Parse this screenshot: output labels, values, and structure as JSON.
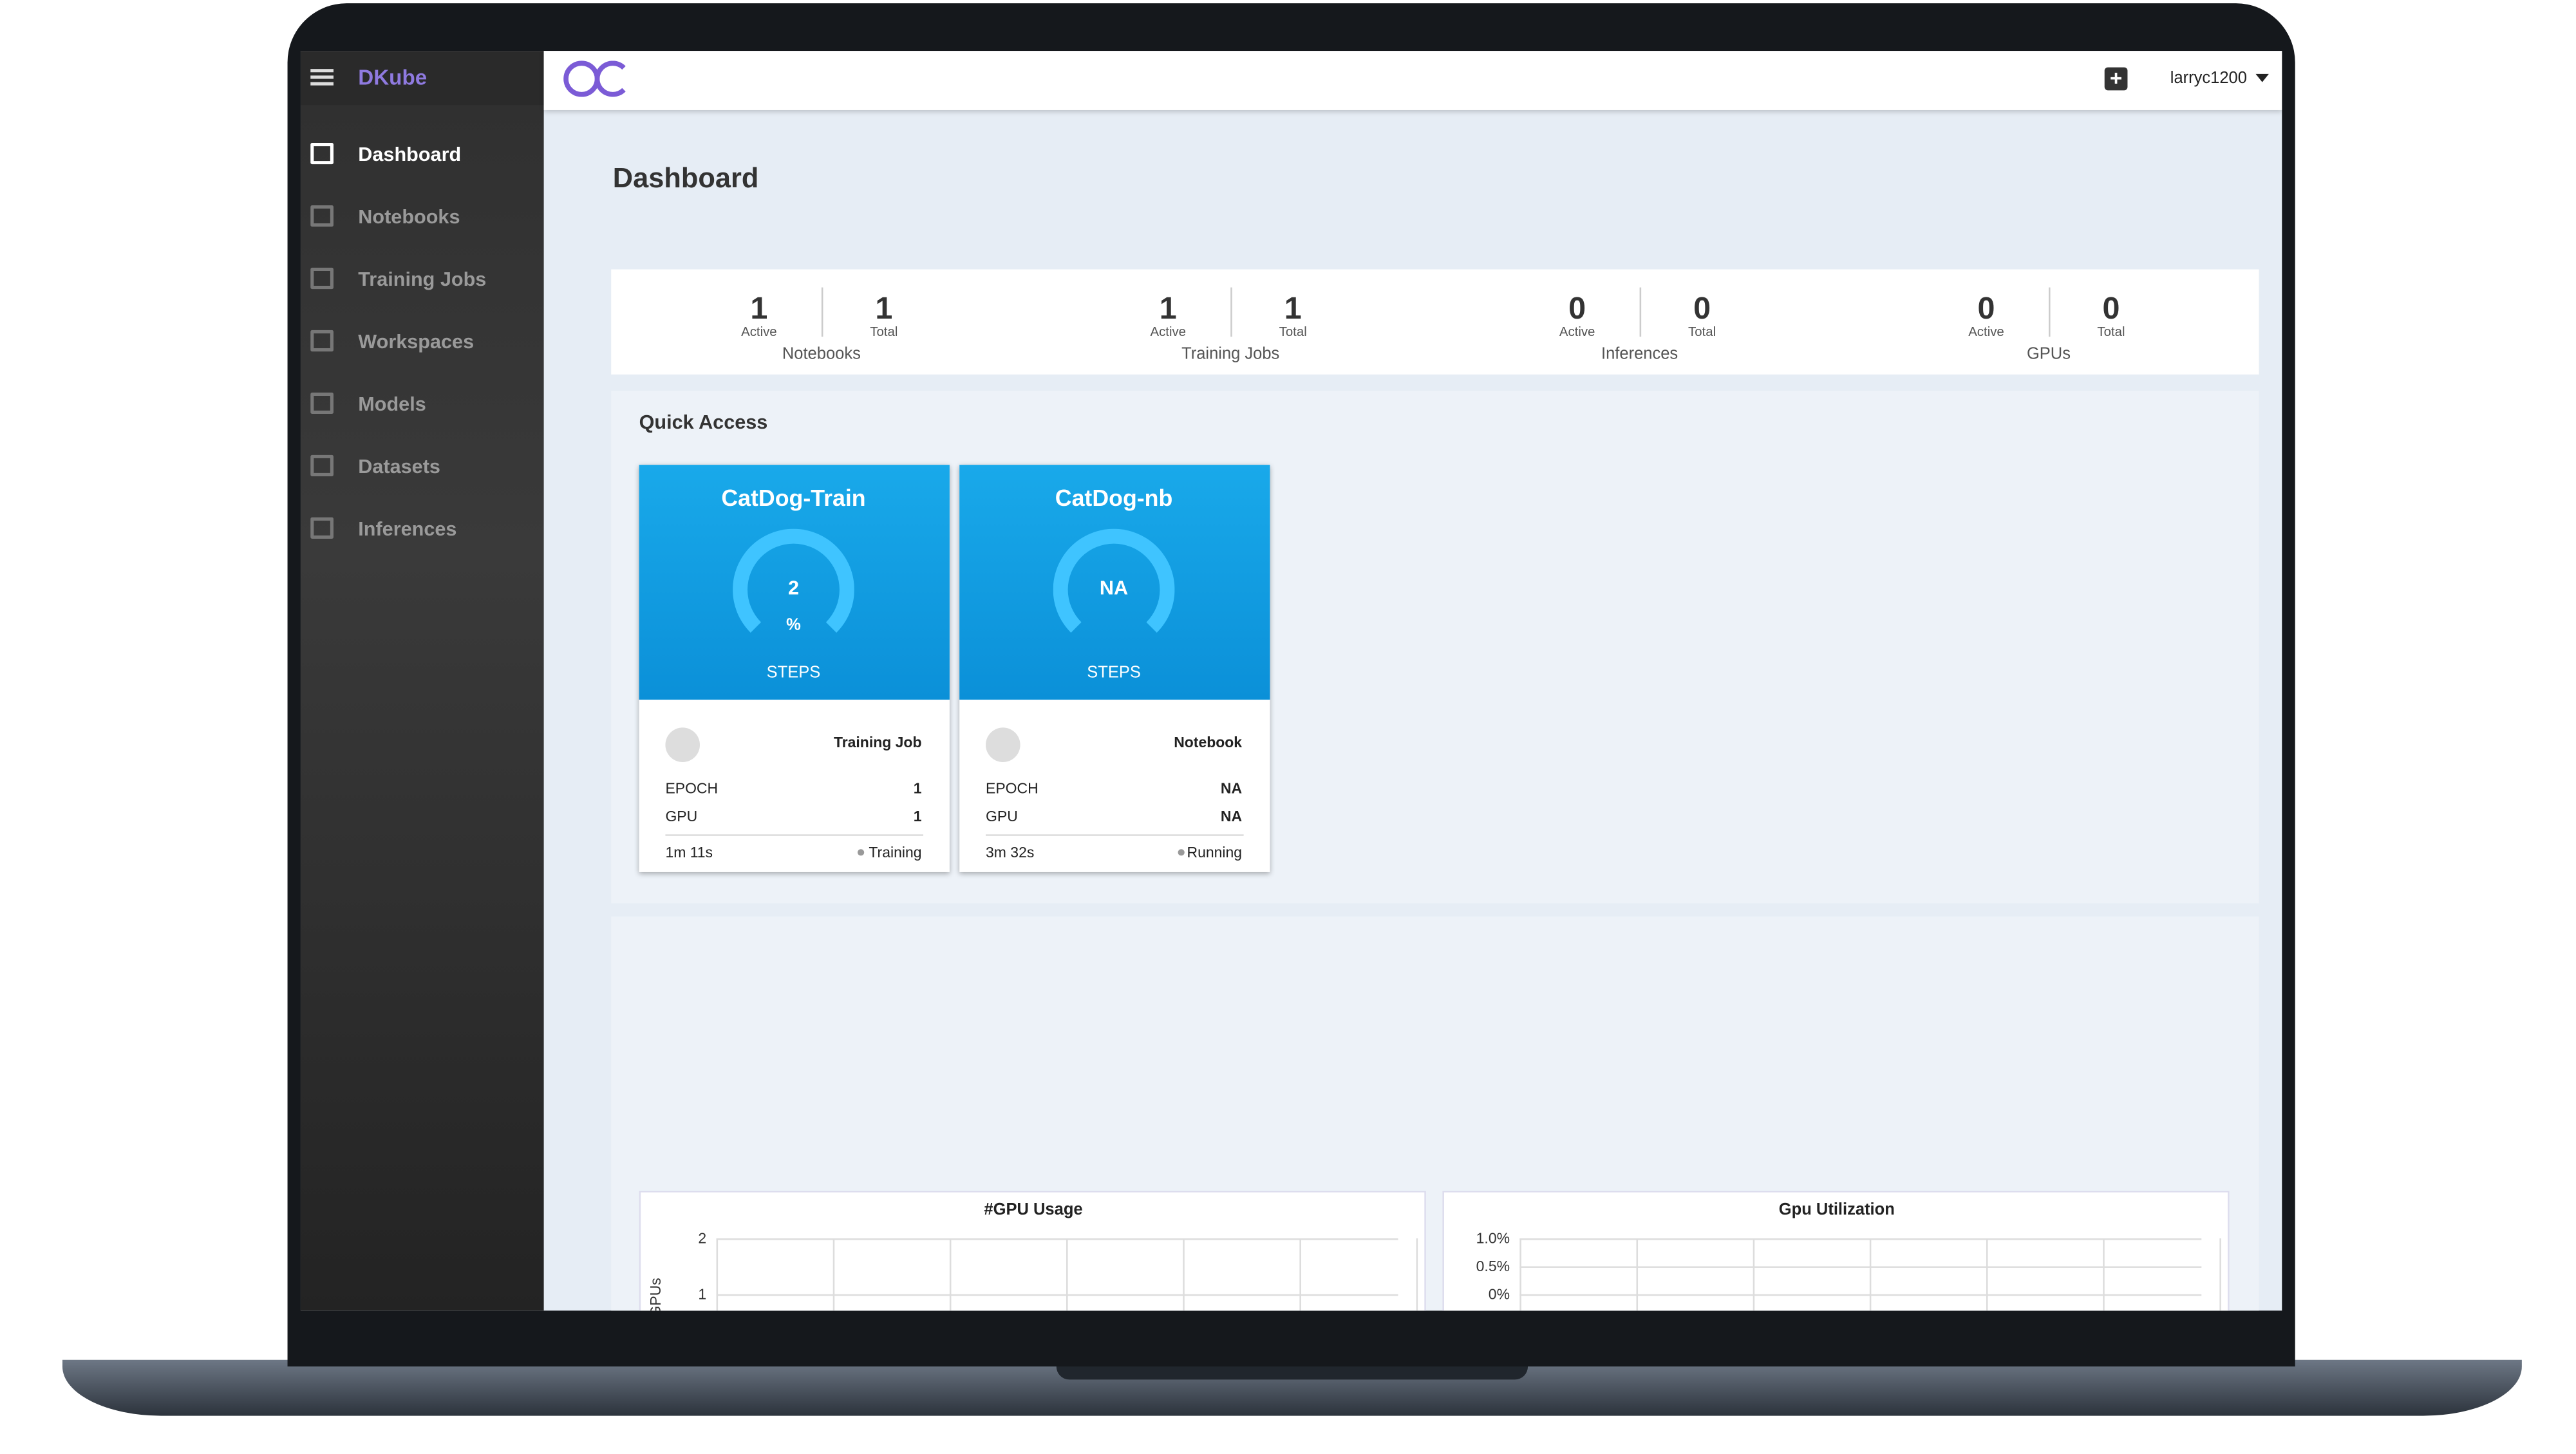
{
  "sidebar": {
    "brand": "DKube",
    "items": [
      "Dashboard",
      "Notebooks",
      "Training Jobs",
      "Workspaces",
      "Models",
      "Datasets",
      "Inferences"
    ]
  },
  "header": {
    "user": "larryc1200"
  },
  "page_title": "Dashboard",
  "stats": [
    {
      "label": "Notebooks",
      "active": 1,
      "active_label": "Active",
      "total": 1,
      "total_label": "Total"
    },
    {
      "label": "Training Jobs",
      "active": 1,
      "active_label": "Active",
      "total": 1,
      "total_label": "Total"
    },
    {
      "label": "Inferences",
      "active": 0,
      "active_label": "Active",
      "total": 0,
      "total_label": "Total"
    },
    {
      "label": "GPUs",
      "active": 0,
      "active_label": "Active",
      "total": 0,
      "total_label": "Total"
    }
  ],
  "quick_access": {
    "title": "Quick Access",
    "cards": [
      {
        "name": "CatDog-Train",
        "gauge": "2",
        "unit": "%",
        "steps_label": "STEPS",
        "kind": "Training Job",
        "rows": [
          [
            "EPOCH",
            "1"
          ],
          [
            "GPU",
            "1"
          ]
        ],
        "duration": "1m 11s",
        "status": "Training"
      },
      {
        "name": "CatDog-nb",
        "gauge": "NA",
        "steps_label": "STEPS",
        "kind": "Notebook",
        "rows": [
          [
            "EPOCH",
            "NA"
          ],
          [
            "GPU",
            "NA"
          ]
        ],
        "duration": "3m 32s",
        "status": "Running"
      }
    ]
  },
  "charts": [
    {
      "title": "#GPU Usage",
      "y_label": "GPUs",
      "yticks": [
        "2",
        "1"
      ]
    },
    {
      "title": "Gpu Utilization",
      "yticks": [
        "1.0%",
        "0.5%",
        "0%"
      ]
    }
  ]
}
